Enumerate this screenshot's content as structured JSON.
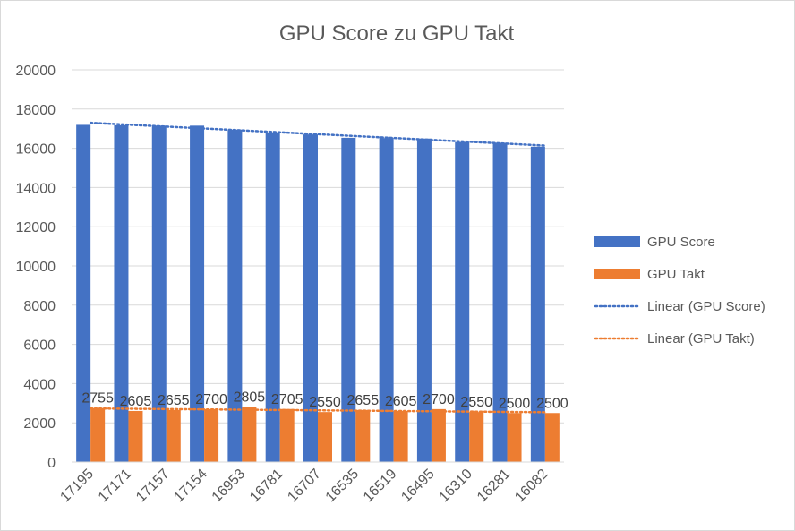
{
  "chart_data": {
    "type": "bar",
    "title": "GPU Score zu GPU Takt",
    "xlabel": "",
    "ylabel": "",
    "categories": [
      "17195",
      "17171",
      "17157",
      "17154",
      "16953",
      "16781",
      "16707",
      "16535",
      "16519",
      "16495",
      "16310",
      "16281",
      "16082"
    ],
    "series": [
      {
        "name": "GPU Score",
        "color": "#4472c4",
        "values": [
          17195,
          17171,
          17157,
          17154,
          16953,
          16781,
          16707,
          16535,
          16519,
          16495,
          16310,
          16281,
          16082
        ],
        "data_labels": false
      },
      {
        "name": "GPU Takt",
        "color": "#ed7d31",
        "values": [
          2755,
          2605,
          2655,
          2700,
          2805,
          2705,
          2550,
          2655,
          2605,
          2700,
          2550,
          2500,
          2500
        ],
        "data_labels": true
      }
    ],
    "trendlines": [
      {
        "name": "Linear (GPU Score)",
        "series": 0,
        "color": "#4472c4",
        "style": "dotted"
      },
      {
        "name": "Linear (GPU Takt)",
        "series": 1,
        "color": "#ed7d31",
        "style": "dotted"
      }
    ],
    "ylim": [
      0,
      20000
    ],
    "yticks": [
      "0",
      "2000",
      "4000",
      "6000",
      "8000",
      "10000",
      "12000",
      "14000",
      "16000",
      "18000",
      "20000"
    ],
    "grid": true,
    "legend_position": "right"
  }
}
